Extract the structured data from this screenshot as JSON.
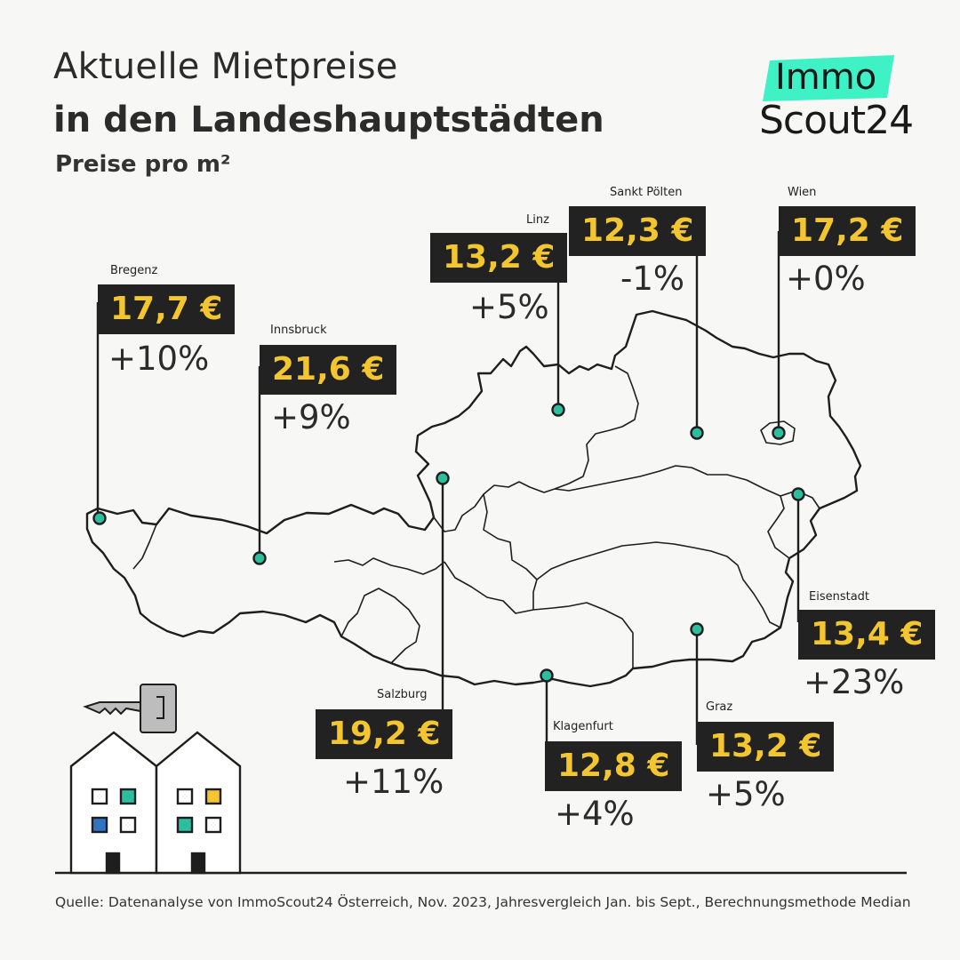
{
  "title_line1": "Aktuelle Mietpreise",
  "title_line2": "in den Landeshauptstädten",
  "subtitle": "Preise pro m²",
  "logo": {
    "top": "Immo",
    "bottom": "Scout24",
    "accent_color": "#3ef2c6"
  },
  "colors": {
    "price_box": "#222222",
    "price_text": "#f3c630",
    "marker": "#2bbfa0"
  },
  "cities": [
    {
      "name": "Bregenz",
      "price": "17,7 €",
      "change": "+10%"
    },
    {
      "name": "Innsbruck",
      "price": "21,6 €",
      "change": "+9%"
    },
    {
      "name": "Linz",
      "price": "13,2 €",
      "change": "+5%"
    },
    {
      "name": "Sankt Pölten",
      "price": "12,3 €",
      "change": "-1%"
    },
    {
      "name": "Wien",
      "price": "17,2 €",
      "change": "+0%"
    },
    {
      "name": "Eisenstadt",
      "price": "13,4 €",
      "change": "+23%"
    },
    {
      "name": "Salzburg",
      "price": "19,2 €",
      "change": "+11%"
    },
    {
      "name": "Klagenfurt",
      "price": "12,8 €",
      "change": "+4%"
    },
    {
      "name": "Graz",
      "price": "13,2 €",
      "change": "+5%"
    }
  ],
  "source": "Quelle: Datenanalyse von ImmoScout24 Österreich, Nov. 2023, Jahresvergleich Jan. bis Sept., Berechnungsmethode Median",
  "illustration": {
    "icons": [
      "key-icon",
      "house-icon",
      "house-icon"
    ]
  }
}
